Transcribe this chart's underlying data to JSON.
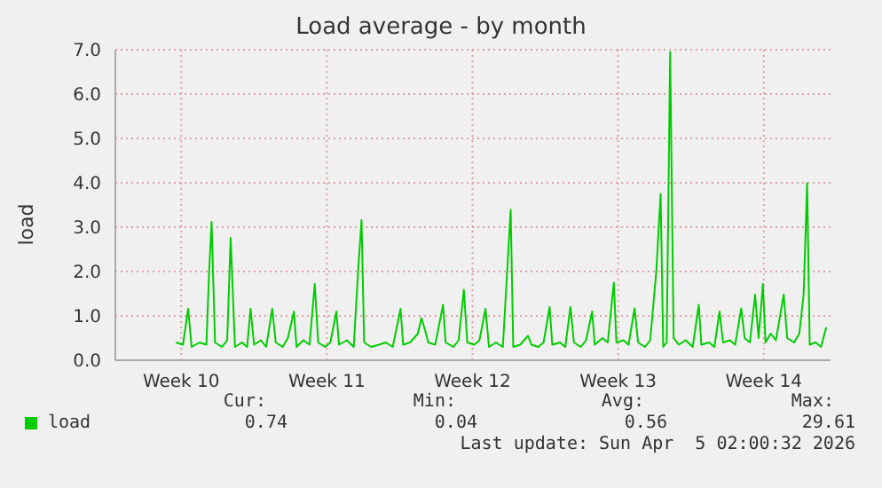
{
  "chart_data": {
    "type": "line",
    "title": "Load average - by month",
    "ylabel": "load",
    "xlim": [
      "2026-03-02T08:00",
      "2026-04-05T17:00"
    ],
    "xticks": [
      {
        "value": "2026-03-05T12:00",
        "label": "Week 10"
      },
      {
        "value": "2026-03-12T12:00",
        "label": "Week 11"
      },
      {
        "value": "2026-03-19T12:00",
        "label": "Week 12"
      },
      {
        "value": "2026-03-26T12:00",
        "label": "Week 13"
      },
      {
        "value": "2026-04-02T12:00",
        "label": "Week 14"
      }
    ],
    "ylim": [
      0,
      7
    ],
    "yticks": [
      {
        "value": 0,
        "label": "0.0"
      },
      {
        "value": 1,
        "label": "1.0"
      },
      {
        "value": 2,
        "label": "2.0"
      },
      {
        "value": 3,
        "label": "3.0"
      },
      {
        "value": 4,
        "label": "4.0"
      },
      {
        "value": 5,
        "label": "5.0"
      },
      {
        "value": 6,
        "label": "6.0"
      },
      {
        "value": 7,
        "label": "7.0"
      }
    ],
    "grid": true,
    "legend": "bottom",
    "marker": "none",
    "line_style": "solid",
    "x": [
      "2026-03-05T06:00",
      "2026-03-05T14:00",
      "2026-03-05T20:00",
      "2026-03-06T00:00",
      "2026-03-06T09:00",
      "2026-03-06T17:00",
      "2026-03-06T20:00",
      "2026-03-06T23:00",
      "2026-03-07T03:00",
      "2026-03-07T11:00",
      "2026-03-07T17:00",
      "2026-03-07T21:00",
      "2026-03-08T02:00",
      "2026-03-08T10:00",
      "2026-03-08T16:00",
      "2026-03-08T20:00",
      "2026-03-09T00:00",
      "2026-03-09T08:00",
      "2026-03-09T14:00",
      "2026-03-09T21:00",
      "2026-03-10T01:00",
      "2026-03-10T09:00",
      "2026-03-10T15:00",
      "2026-03-10T22:00",
      "2026-03-11T01:00",
      "2026-03-11T09:00",
      "2026-03-11T16:00",
      "2026-03-11T22:00",
      "2026-03-12T02:00",
      "2026-03-12T10:00",
      "2026-03-12T16:00",
      "2026-03-12T23:00",
      "2026-03-13T02:00",
      "2026-03-13T11:00",
      "2026-03-13T19:00",
      "2026-03-14T00:00",
      "2026-03-14T04:00",
      "2026-03-14T07:00",
      "2026-03-14T15:00",
      "2026-03-15T00:00",
      "2026-03-15T08:00",
      "2026-03-15T16:00",
      "2026-03-16T01:00",
      "2026-03-16T04:00",
      "2026-03-16T12:00",
      "2026-03-16T21:00",
      "2026-03-17T01:00",
      "2026-03-17T05:00",
      "2026-03-17T09:00",
      "2026-03-17T17:00",
      "2026-03-18T02:00",
      "2026-03-18T05:00",
      "2026-03-18T14:00",
      "2026-03-18T20:00",
      "2026-03-19T02:00",
      "2026-03-19T06:00",
      "2026-03-19T14:00",
      "2026-03-19T20:00",
      "2026-03-20T03:00",
      "2026-03-20T07:00",
      "2026-03-20T15:00",
      "2026-03-20T23:00",
      "2026-03-21T04:00",
      "2026-03-21T08:00",
      "2026-03-21T11:00",
      "2026-03-21T19:00",
      "2026-03-22T04:00",
      "2026-03-22T08:00",
      "2026-03-22T16:00",
      "2026-03-22T22:00",
      "2026-03-23T05:00",
      "2026-03-23T08:00",
      "2026-03-23T17:00",
      "2026-03-23T23:00",
      "2026-03-24T05:00",
      "2026-03-24T09:00",
      "2026-03-24T17:00",
      "2026-03-24T23:00",
      "2026-03-25T06:00",
      "2026-03-25T09:00",
      "2026-03-25T18:00",
      "2026-03-26T00:00",
      "2026-03-26T07:00",
      "2026-03-26T10:00",
      "2026-03-26T18:00",
      "2026-03-27T00:00",
      "2026-03-27T07:00",
      "2026-03-27T11:00",
      "2026-03-27T19:00",
      "2026-03-28T01:00",
      "2026-03-28T08:00",
      "2026-03-28T13:00",
      "2026-03-28T16:00",
      "2026-03-28T20:00",
      "2026-03-29T00:00",
      "2026-03-29T04:00",
      "2026-03-29T10:00",
      "2026-03-29T18:00",
      "2026-03-30T02:00",
      "2026-03-30T09:00",
      "2026-03-30T12:00",
      "2026-03-30T21:00",
      "2026-03-31T03:00",
      "2026-03-31T09:00",
      "2026-03-31T13:00",
      "2026-03-31T21:00",
      "2026-04-01T03:00",
      "2026-04-01T10:00",
      "2026-04-01T14:00",
      "2026-04-01T20:00",
      "2026-04-02T02:00",
      "2026-04-02T06:00",
      "2026-04-02T11:00",
      "2026-04-02T14:00",
      "2026-04-02T20:00",
      "2026-04-03T02:00",
      "2026-04-03T11:00",
      "2026-04-03T15:00",
      "2026-04-03T23:00",
      "2026-04-04T05:00",
      "2026-04-04T10:00",
      "2026-04-04T14:00",
      "2026-04-04T17:00",
      "2026-04-05T00:00",
      "2026-04-05T06:00",
      "2026-04-05T12:00"
    ],
    "series": [
      {
        "name": "load",
        "color": "#00cc00",
        "values": [
          0.4,
          0.35,
          1.16,
          0.3,
          0.4,
          0.35,
          1.9,
          3.12,
          0.4,
          0.3,
          0.45,
          2.76,
          0.3,
          0.4,
          0.3,
          1.16,
          0.35,
          0.45,
          0.3,
          1.16,
          0.4,
          0.3,
          0.5,
          1.1,
          0.3,
          0.45,
          0.35,
          1.72,
          0.4,
          0.3,
          0.4,
          1.1,
          0.35,
          0.45,
          0.3,
          2.0,
          3.16,
          0.4,
          0.3,
          0.35,
          0.4,
          0.3,
          1.16,
          0.35,
          0.4,
          0.6,
          0.95,
          0.7,
          0.4,
          0.35,
          1.25,
          0.4,
          0.3,
          0.45,
          1.59,
          0.4,
          0.35,
          0.45,
          1.16,
          0.3,
          0.4,
          0.3,
          2.0,
          3.39,
          0.3,
          0.35,
          0.55,
          0.35,
          0.3,
          0.4,
          1.2,
          0.35,
          0.4,
          0.3,
          1.2,
          0.4,
          0.3,
          0.45,
          1.1,
          0.35,
          0.5,
          0.4,
          1.75,
          0.4,
          0.45,
          0.35,
          1.17,
          0.4,
          0.3,
          0.45,
          2.0,
          3.75,
          0.3,
          0.4,
          6.95,
          0.5,
          0.35,
          0.45,
          0.3,
          1.25,
          0.35,
          0.4,
          0.3,
          1.1,
          0.4,
          0.45,
          0.35,
          1.17,
          0.5,
          0.4,
          1.48,
          0.5,
          1.72,
          0.4,
          0.6,
          0.45,
          1.48,
          0.5,
          0.4,
          0.6,
          1.5,
          3.99,
          0.35,
          0.4,
          0.3,
          0.74
        ]
      }
    ],
    "annotations": [
      "Cur:",
      "Min:",
      "Avg:",
      "Max:",
      "0.74",
      "0.04",
      "0.56",
      "29.61",
      "Last update: Sun Apr  5 02:00:32 2026"
    ]
  }
}
